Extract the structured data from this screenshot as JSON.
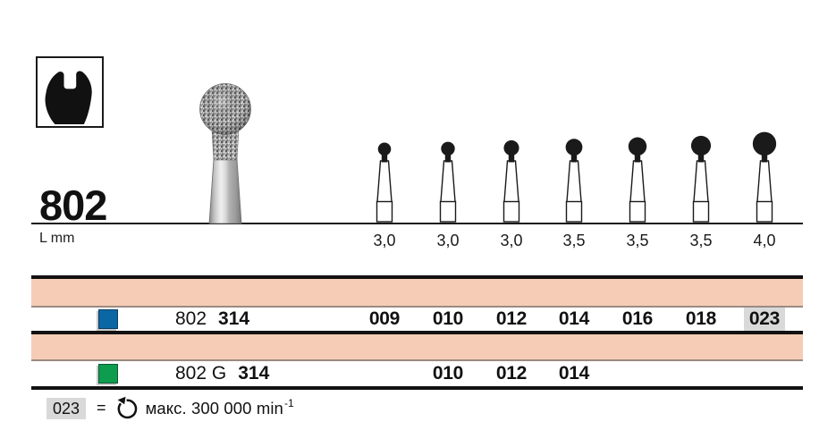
{
  "page": {
    "figure_number": "802",
    "axis_label": "L mm"
  },
  "icons": {
    "profile_icon": "bur-head-profile",
    "photo": "round-diamond-bur-photo",
    "rotation_icon": "max-rotation-speed"
  },
  "diagram": {
    "columns": [
      {
        "length": "3,0",
        "size_code": "009"
      },
      {
        "length": "3,0",
        "size_code": "010"
      },
      {
        "length": "3,0",
        "size_code": "012"
      },
      {
        "length": "3,5",
        "size_code": "014"
      },
      {
        "length": "3,5",
        "size_code": "016"
      },
      {
        "length": "3,5",
        "size_code": "018"
      },
      {
        "length": "4,0",
        "size_code": "023"
      }
    ]
  },
  "table": {
    "rows": [
      {
        "swatch_color": "#0b66a4",
        "swatch_name": "blue-grit-swatch",
        "prefix": "802",
        "shank": "314",
        "sizes": [
          "009",
          "010",
          "012",
          "014",
          "016",
          "018",
          "023"
        ],
        "highlighted": "023"
      },
      {
        "swatch_color": "#0e9c4e",
        "swatch_name": "green-grit-swatch",
        "prefix": "802 G",
        "shank": "314",
        "sizes": [
          "",
          "010",
          "012",
          "014",
          "",
          "",
          ""
        ],
        "highlighted": ""
      }
    ]
  },
  "legend": {
    "size_code": "023",
    "equals_sign": "=",
    "text": "макс. 300 000 min",
    "superscript": "-1"
  },
  "colors": {
    "band_pink": "#f6ccb6",
    "highlight_gray": "#d9d9d9",
    "blue": "#0b66a4",
    "green": "#0e9c4e"
  }
}
